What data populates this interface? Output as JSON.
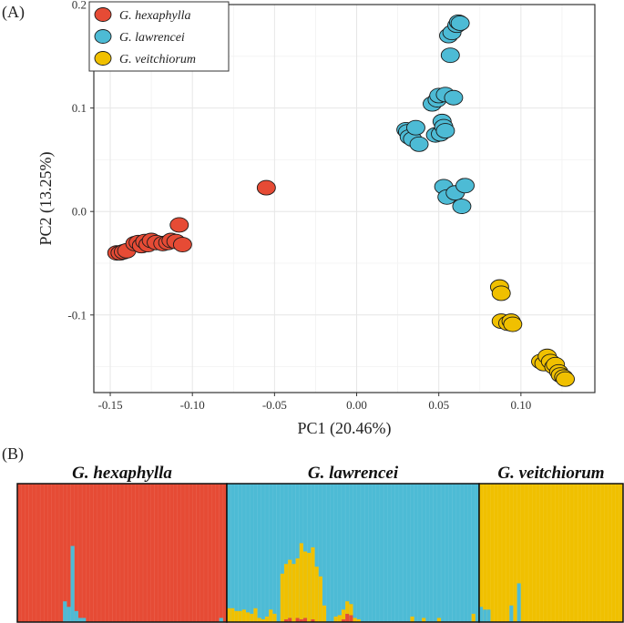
{
  "chart_data": [
    {
      "type": "scatter",
      "panel_label": "(A)",
      "xlabel": "PC1 (20.46%)",
      "ylabel": "PC2 (13.25%)",
      "xlim": [
        -0.16,
        0.145
      ],
      "ylim": [
        -0.175,
        0.2
      ],
      "xticks": [
        -0.15,
        -0.1,
        -0.05,
        0.0,
        0.05,
        0.1
      ],
      "xtick_labels": [
        "-0.15",
        "-0.10",
        "-0.05",
        "0.00",
        "0.05",
        "0.10"
      ],
      "yticks": [
        -0.1,
        0.0,
        0.1,
        0.2
      ],
      "ytick_labels": [
        "-0.1",
        "0.0",
        "0.1",
        "0.2"
      ],
      "grid": true,
      "legend_position": "top-left",
      "series": [
        {
          "name": "G. hexaphylla",
          "color": "#E64B35",
          "points": [
            [
              -0.146,
              -0.04
            ],
            [
              -0.144,
              -0.04
            ],
            [
              -0.142,
              -0.039
            ],
            [
              -0.14,
              -0.038
            ],
            [
              -0.135,
              -0.031
            ],
            [
              -0.133,
              -0.03
            ],
            [
              -0.131,
              -0.033
            ],
            [
              -0.129,
              -0.029
            ],
            [
              -0.127,
              -0.032
            ],
            [
              -0.125,
              -0.028
            ],
            [
              -0.122,
              -0.03
            ],
            [
              -0.118,
              -0.031
            ],
            [
              -0.115,
              -0.03
            ],
            [
              -0.113,
              -0.028
            ],
            [
              -0.11,
              -0.029
            ],
            [
              -0.108,
              -0.013
            ],
            [
              -0.106,
              -0.032
            ],
            [
              -0.055,
              0.023
            ]
          ]
        },
        {
          "name": "G. lawrencei",
          "color": "#4DBBD5",
          "points": [
            [
              0.03,
              0.079
            ],
            [
              0.031,
              0.077
            ],
            [
              0.032,
              0.072
            ],
            [
              0.034,
              0.07
            ],
            [
              0.036,
              0.081
            ],
            [
              0.038,
              0.065
            ],
            [
              0.046,
              0.104
            ],
            [
              0.048,
              0.074
            ],
            [
              0.049,
              0.108
            ],
            [
              0.05,
              0.112
            ],
            [
              0.051,
              0.075
            ],
            [
              0.052,
              0.087
            ],
            [
              0.053,
              0.082
            ],
            [
              0.053,
              0.024
            ],
            [
              0.054,
              0.113
            ],
            [
              0.054,
              0.078
            ],
            [
              0.055,
              0.014
            ],
            [
              0.056,
              0.17
            ],
            [
              0.057,
              0.151
            ],
            [
              0.058,
              0.173
            ],
            [
              0.059,
              0.11
            ],
            [
              0.06,
              0.018
            ],
            [
              0.061,
              0.18
            ],
            [
              0.062,
              0.183
            ],
            [
              0.063,
              0.182
            ],
            [
              0.064,
              0.005
            ],
            [
              0.066,
              0.025
            ]
          ]
        },
        {
          "name": "G. veitchiorum",
          "color": "#F0C000",
          "points": [
            [
              0.087,
              -0.073
            ],
            [
              0.088,
              -0.079
            ],
            [
              0.088,
              -0.106
            ],
            [
              0.092,
              -0.108
            ],
            [
              0.094,
              -0.106
            ],
            [
              0.095,
              -0.109
            ],
            [
              0.112,
              -0.145
            ],
            [
              0.114,
              -0.147
            ],
            [
              0.116,
              -0.14
            ],
            [
              0.118,
              -0.145
            ],
            [
              0.12,
              -0.15
            ],
            [
              0.121,
              -0.148
            ],
            [
              0.123,
              -0.155
            ],
            [
              0.124,
              -0.158
            ],
            [
              0.126,
              -0.16
            ],
            [
              0.127,
              -0.162
            ]
          ]
        }
      ]
    },
    {
      "type": "stacked_bar",
      "panel_label": "(B)",
      "group_labels": [
        "G. hexaphylla",
        "G. lawrencei",
        "G. veitchiorum"
      ],
      "colors": {
        "red": "#E64B35",
        "blue": "#4DBBD5",
        "yellow": "#F0C000"
      },
      "groups": [
        {
          "name": "G. hexaphylla",
          "base": "red",
          "admix": [
            {
              "index": 12,
              "blue": 0.15
            },
            {
              "index": 13,
              "blue": 0.11
            },
            {
              "index": 14,
              "blue": 0.55
            },
            {
              "index": 15,
              "blue": 0.08
            },
            {
              "index": 16,
              "blue": 0.03
            },
            {
              "index": 17,
              "blue": 0.03
            },
            {
              "index": 53,
              "blue": 0.03
            }
          ],
          "count": 55
        },
        {
          "name": "G. lawrencei",
          "base": "blue",
          "admix": [
            {
              "index": 0,
              "yellow": 0.1
            },
            {
              "index": 1,
              "yellow": 0.1
            },
            {
              "index": 2,
              "yellow": 0.08
            },
            {
              "index": 3,
              "yellow": 0.08
            },
            {
              "index": 4,
              "yellow": 0.09
            },
            {
              "index": 5,
              "yellow": 0.07
            },
            {
              "index": 6,
              "yellow": 0.06
            },
            {
              "index": 7,
              "yellow": 0.1
            },
            {
              "index": 8,
              "yellow": 0.03
            },
            {
              "index": 9,
              "yellow": 0.02
            },
            {
              "index": 10,
              "yellow": 0.04
            },
            {
              "index": 11,
              "yellow": 0.09
            },
            {
              "index": 12,
              "yellow": 0.06
            },
            {
              "index": 14,
              "yellow": 0.35
            },
            {
              "index": 15,
              "yellow": 0.4,
              "red": 0.02
            },
            {
              "index": 16,
              "yellow": 0.42,
              "red": 0.03
            },
            {
              "index": 17,
              "yellow": 0.42
            },
            {
              "index": 18,
              "yellow": 0.43,
              "red": 0.03
            },
            {
              "index": 19,
              "yellow": 0.55,
              "red": 0.02
            },
            {
              "index": 20,
              "yellow": 0.48,
              "red": 0.03
            },
            {
              "index": 21,
              "yellow": 0.5
            },
            {
              "index": 22,
              "yellow": 0.52,
              "red": 0.02
            },
            {
              "index": 23,
              "yellow": 0.4
            },
            {
              "index": 24,
              "yellow": 0.33
            },
            {
              "index": 25,
              "yellow": 0.12
            },
            {
              "index": 28,
              "yellow": 0.04
            },
            {
              "index": 29,
              "yellow": 0.05
            },
            {
              "index": 30,
              "yellow": 0.07,
              "red": 0.02
            },
            {
              "index": 31,
              "yellow": 0.09,
              "red": 0.06
            },
            {
              "index": 32,
              "yellow": 0.08,
              "red": 0.05
            },
            {
              "index": 33,
              "yellow": 0.03
            },
            {
              "index": 34,
              "yellow": 0.02
            },
            {
              "index": 48,
              "yellow": 0.04
            },
            {
              "index": 51,
              "yellow": 0.03
            },
            {
              "index": 55,
              "yellow": 0.03
            },
            {
              "index": 64,
              "yellow": 0.06
            }
          ],
          "count": 66
        },
        {
          "name": "G. veitchiorum",
          "base": "yellow",
          "admix": [
            {
              "index": 0,
              "blue": 0.11
            },
            {
              "index": 1,
              "blue": 0.09
            },
            {
              "index": 2,
              "blue": 0.09
            },
            {
              "index": 8,
              "blue": 0.12
            },
            {
              "index": 10,
              "blue": 0.28
            }
          ],
          "count": 38
        }
      ]
    }
  ]
}
